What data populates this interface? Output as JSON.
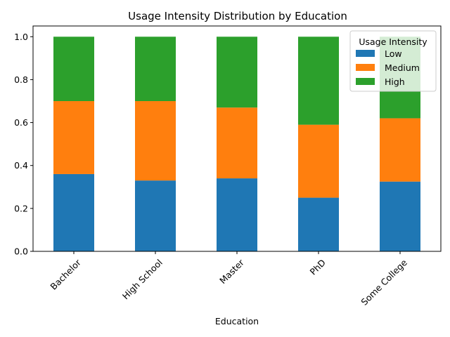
{
  "chart_data": {
    "type": "bar",
    "stacked": true,
    "title": "Usage Intensity Distribution by Education",
    "xlabel": "Education",
    "ylabel": "",
    "categories": [
      "Bachelor",
      "High School",
      "Master",
      "PhD",
      "Some College"
    ],
    "series": [
      {
        "name": "Low",
        "color": "#1f77b4",
        "values": [
          0.36,
          0.33,
          0.34,
          0.25,
          0.325
        ]
      },
      {
        "name": "Medium",
        "color": "#ff7f0e",
        "values": [
          0.34,
          0.37,
          0.33,
          0.34,
          0.295
        ]
      },
      {
        "name": "High",
        "color": "#2ca02c",
        "values": [
          0.3,
          0.3,
          0.33,
          0.41,
          0.38
        ]
      }
    ],
    "ylim": [
      0,
      1.05
    ],
    "yticks": [
      "0.0",
      "0.2",
      "0.4",
      "0.6",
      "0.8",
      "1.0"
    ],
    "grid": false,
    "legend": {
      "title": "Usage Intensity",
      "position": "top-right"
    },
    "x_tick_rotation": "45"
  }
}
